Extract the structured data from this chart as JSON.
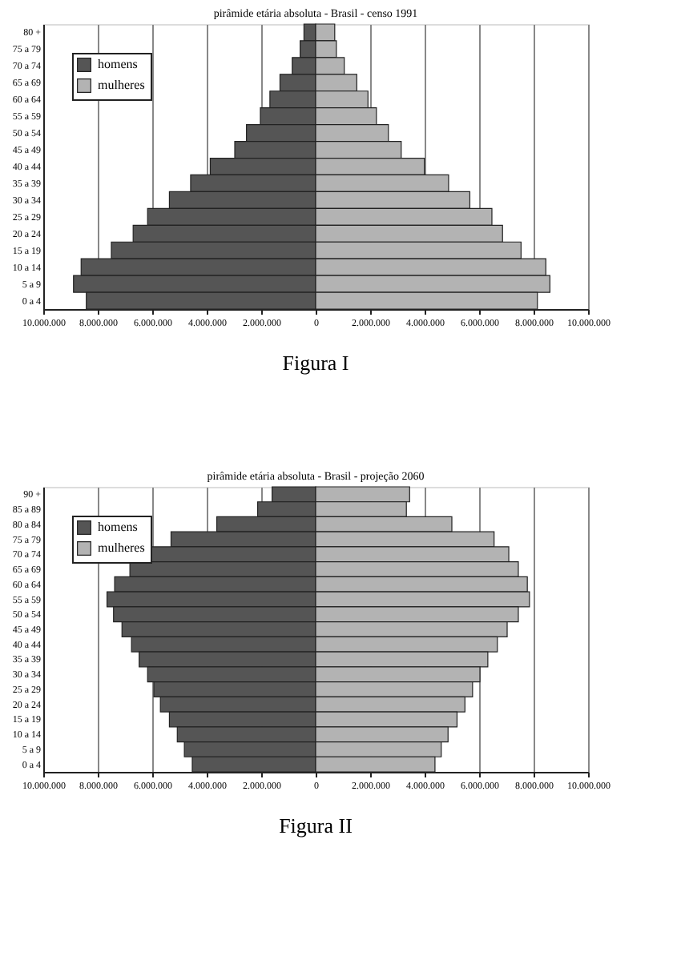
{
  "chart_data": [
    {
      "type": "bar",
      "orientation": "horizontal",
      "stacked": true,
      "title": "pirâmide etária absoluta - Brasil - censo 1991",
      "categories": [
        "80 +",
        "75 a 79",
        "70 a 74",
        "65 a 69",
        "60 a 64",
        "55 a 59",
        "50 a 54",
        "45 a 49",
        "40 a 44",
        "35 a 39",
        "30 a 34",
        "25 a 29",
        "20 a 24",
        "15 a 19",
        "10 a 14",
        "5 a 9",
        "0 a 4"
      ],
      "series": [
        {
          "name": "homens",
          "color": "#555555",
          "values": [
            -430000,
            -570000,
            -860000,
            -1310000,
            -1680000,
            -2030000,
            -2540000,
            -2970000,
            -3870000,
            -4590000,
            -5370000,
            -6170000,
            -6700000,
            -7500000,
            -8610000,
            -8890000,
            -8420000
          ]
        },
        {
          "name": "mulheres",
          "color": "#b3b3b3",
          "values": [
            700000,
            760000,
            1050000,
            1510000,
            1920000,
            2230000,
            2670000,
            3140000,
            3990000,
            4880000,
            5660000,
            6470000,
            6860000,
            7540000,
            8450000,
            8600000,
            8140000
          ]
        }
      ],
      "xlim": [
        -10000000,
        10000000
      ],
      "xticks": [
        {
          "value": -10000000,
          "label": "10.000.000"
        },
        {
          "value": -8000000,
          "label": "8.000.000"
        },
        {
          "value": -6000000,
          "label": "6.000.000"
        },
        {
          "value": -4000000,
          "label": "4.000.000"
        },
        {
          "value": -2000000,
          "label": "2.000.000"
        },
        0,
        {
          "value": 2000000,
          "label": "2.000.000"
        },
        {
          "value": 4000000,
          "label": "4.000.000"
        },
        {
          "value": 6000000,
          "label": "6.000.000"
        },
        {
          "value": 8000000,
          "label": "8.000.000"
        },
        {
          "value": 10000000,
          "label": "10.000.000"
        }
      ],
      "grid": "x",
      "legend": "top left",
      "annotations": [
        "Figura I"
      ]
    },
    {
      "type": "bar",
      "orientation": "horizontal",
      "stacked": true,
      "title": "pirâmide etária absoluta - Brasil - projeção 2060",
      "categories": [
        "90 +",
        "85 a 89",
        "80 a 84",
        "75 a 79",
        "70 a 74",
        "65 a 69",
        "60 a 64",
        "55 a 59",
        "50 a 54",
        "45 a 49",
        "40 a 44",
        "35 a 39",
        "30 a 34",
        "25 a 29",
        "20 a 24",
        "15 a 19",
        "10 a 14",
        "5 a 9",
        "0 a 4"
      ],
      "series": [
        {
          "name": "homens",
          "color": "#555555",
          "values": [
            -1600000,
            -2130000,
            -3630000,
            -5310000,
            -6130000,
            -6820000,
            -7380000,
            -7660000,
            -7420000,
            -7110000,
            -6760000,
            -6480000,
            -6170000,
            -5940000,
            -5700000,
            -5370000,
            -5080000,
            -4820000,
            -4530000
          ]
        },
        {
          "name": "mulheres",
          "color": "#b3b3b3",
          "values": [
            3450000,
            3330000,
            5000000,
            6550000,
            7090000,
            7440000,
            7770000,
            7850000,
            7440000,
            7030000,
            6670000,
            6320000,
            6030000,
            5760000,
            5480000,
            5190000,
            4860000,
            4610000,
            4380000
          ]
        }
      ],
      "xlim": [
        -10000000,
        10000000
      ],
      "xticks": [
        {
          "value": -10000000,
          "label": "10.000.000"
        },
        {
          "value": -8000000,
          "label": "8.000.000"
        },
        {
          "value": -6000000,
          "label": "6.000.000"
        },
        {
          "value": -4000000,
          "label": "4.000.000"
        },
        {
          "value": -2000000,
          "label": "2.000.000"
        },
        0,
        {
          "value": 2000000,
          "label": "2.000.000"
        },
        {
          "value": 4000000,
          "label": "4.000.000"
        },
        {
          "value": 6000000,
          "label": "6.000.000"
        },
        {
          "value": 8000000,
          "label": "8.000.000"
        },
        {
          "value": 10000000,
          "label": "10.000.000"
        }
      ],
      "grid": "x",
      "legend": "top left",
      "annotations": [
        "Figura II"
      ]
    }
  ]
}
